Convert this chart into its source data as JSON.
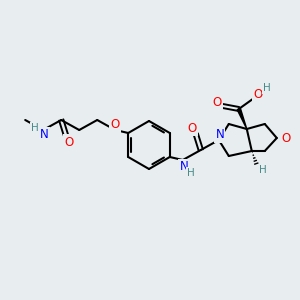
{
  "background_color": "#e8eef0",
  "bond_color": "#000000",
  "O_color": "#ff0000",
  "N_color": "#0000ff",
  "H_color": "#4a8a8a",
  "figsize": [
    3.0,
    3.0
  ],
  "dpi": 100,
  "xlim": [
    0,
    300
  ],
  "ylim": [
    0,
    300
  ]
}
